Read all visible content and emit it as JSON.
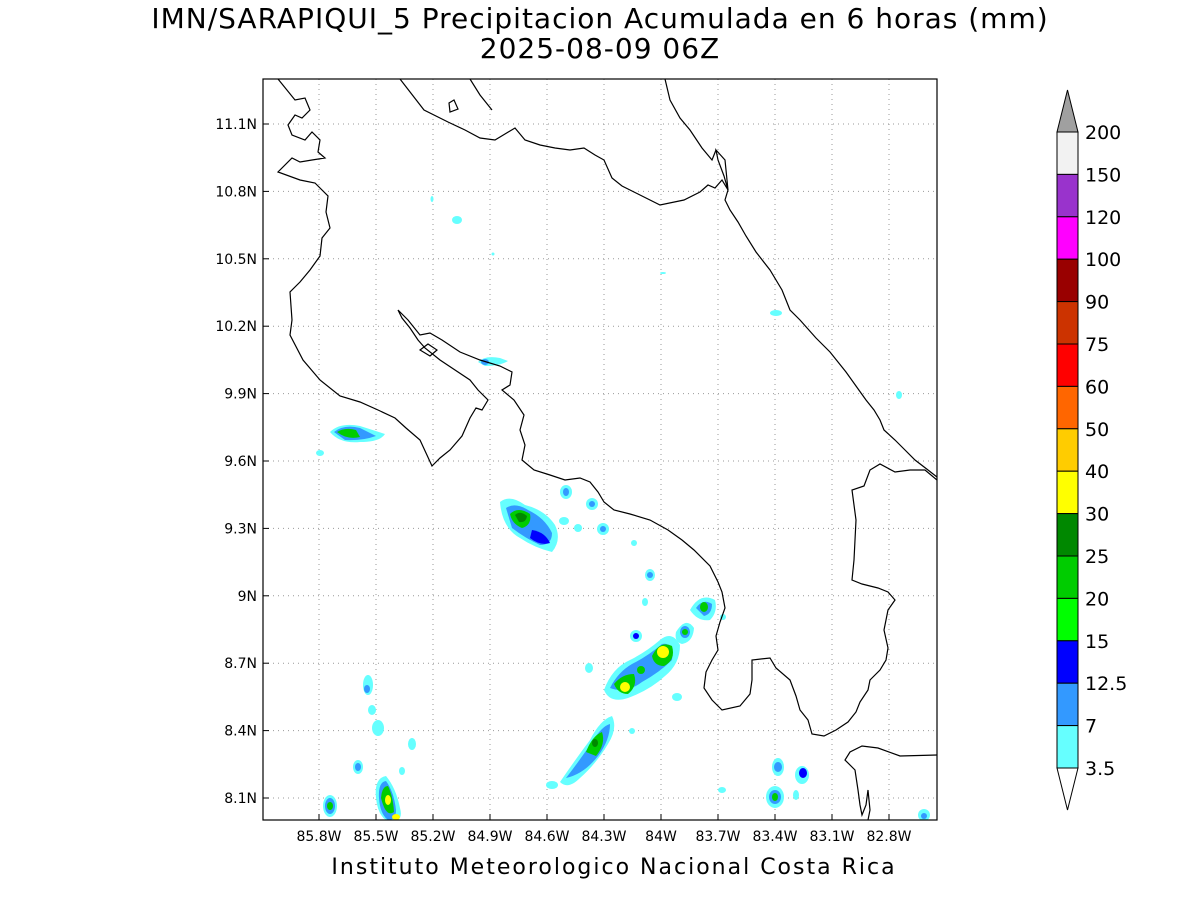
{
  "title_line1": "IMN/SARAPIQUI_5 Precipitacion Acumulada en 6 horas (mm)",
  "title_line2": "2025-08-09 06Z",
  "footer": "Instituto Meteorologico Nacional Costa Rica",
  "lat_labels": [
    "11.1N",
    "10.8N",
    "10.5N",
    "10.2N",
    "9.9N",
    "9.6N",
    "9.3N",
    "9N",
    "8.7N",
    "8.4N",
    "8.1N"
  ],
  "lat_values": [
    11.1,
    10.8,
    10.5,
    10.2,
    9.9,
    9.6,
    9.3,
    9.0,
    8.7,
    8.4,
    8.1
  ],
  "lon_labels": [
    "85.8W",
    "85.5W",
    "85.2W",
    "84.9W",
    "84.6W",
    "84.3W",
    "84W",
    "83.7W",
    "83.4W",
    "83.1W",
    "82.8W"
  ],
  "lon_values": [
    -85.8,
    -85.5,
    -85.2,
    -84.9,
    -84.6,
    -84.3,
    -84.0,
    -83.7,
    -83.4,
    -83.1,
    -82.8
  ],
  "legend": {
    "labels": [
      "3.5",
      "7",
      "12.5",
      "15",
      "20",
      "25",
      "30",
      "40",
      "50",
      "60",
      "75",
      "90",
      "100",
      "120",
      "150",
      "200"
    ],
    "colors": [
      "#66ffff",
      "#3399ff",
      "#0000ff",
      "#00ff00",
      "#00cc00",
      "#008800",
      "#ffff00",
      "#ffcc00",
      "#ff6600",
      "#ff0000",
      "#cc3300",
      "#990000",
      "#ff00ff",
      "#9933cc",
      "#f2f2f2"
    ],
    "over_color": "#a0a0a0",
    "under_color": "#ffffff"
  }
}
